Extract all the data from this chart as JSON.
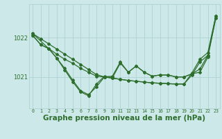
{
  "bg_color": "#cce8e8",
  "line_color": "#2d6e2d",
  "grid_color": "#aacece",
  "xlabel": "Graphe pression niveau de la mer (hPa)",
  "xlabel_fontsize": 7.5,
  "xticks": [
    0,
    1,
    2,
    3,
    4,
    5,
    6,
    7,
    8,
    9,
    10,
    11,
    12,
    13,
    14,
    15,
    16,
    17,
    18,
    19,
    20,
    21,
    22,
    23
  ],
  "ytick_labels": [
    "1021",
    "1022"
  ],
  "ytick_vals": [
    1021.0,
    1022.0
  ],
  "ylim": [
    1020.2,
    1022.85
  ],
  "xlim": [
    -0.5,
    23.5
  ],
  "series": [
    {
      "x": [
        0,
        1,
        2,
        3,
        4,
        5,
        6,
        7,
        8,
        9,
        10,
        11,
        12,
        13,
        14,
        15,
        16,
        17,
        18,
        19,
        20,
        21,
        22,
        23
      ],
      "y": [
        1022.1,
        1021.97,
        1021.84,
        1021.71,
        1021.58,
        1021.45,
        1021.32,
        1021.19,
        1021.06,
        1021.0,
        1020.97,
        1020.94,
        1020.91,
        1020.89,
        1020.87,
        1020.85,
        1020.84,
        1020.83,
        1020.82,
        1020.82,
        1021.1,
        1021.45,
        1021.62,
        1022.55
      ],
      "marker": "D",
      "markersize": 2.0,
      "linewidth": 0.9
    },
    {
      "x": [
        0,
        1,
        2,
        3,
        4,
        5,
        6,
        7,
        8,
        9,
        10,
        11,
        12,
        13,
        14,
        15,
        16,
        17,
        18,
        19,
        20,
        21,
        22,
        23
      ],
      "y": [
        1022.05,
        1021.82,
        1021.72,
        1021.58,
        1021.45,
        1021.35,
        1021.22,
        1021.12,
        1021.02,
        1021.0,
        1020.97,
        1020.94,
        1020.91,
        1020.89,
        1020.87,
        1020.85,
        1020.84,
        1020.83,
        1020.82,
        1020.82,
        1021.05,
        1021.38,
        1021.55,
        1022.5
      ],
      "marker": "D",
      "markersize": 2.0,
      "linewidth": 0.9
    },
    {
      "x": [
        0,
        1,
        2,
        3,
        4,
        5,
        6,
        7,
        8,
        9,
        10,
        11,
        12,
        13,
        14,
        15,
        16,
        17,
        18,
        19,
        20,
        21,
        22,
        23
      ],
      "y": [
        1022.05,
        1021.82,
        1021.72,
        1021.48,
        1021.22,
        1020.92,
        1020.65,
        1020.55,
        1020.75,
        1021.0,
        1021.02,
        1021.38,
        1021.12,
        1021.28,
        1021.12,
        1021.02,
        1021.05,
        1021.05,
        1021.0,
        1021.0,
        1021.08,
        1021.12,
        1021.5,
        1022.5
      ],
      "marker": "D",
      "markersize": 2.0,
      "linewidth": 0.9
    },
    {
      "x": [
        0,
        2,
        3,
        4,
        5,
        6,
        7,
        8,
        9,
        10,
        11,
        12,
        13,
        14,
        15,
        16,
        17,
        18,
        19,
        20,
        21,
        22,
        23
      ],
      "y": [
        1022.1,
        1021.72,
        1021.48,
        1021.18,
        1020.88,
        1020.62,
        1020.52,
        1020.82,
        1021.02,
        1020.98,
        1021.35,
        1021.12,
        1021.28,
        1021.12,
        1021.02,
        1021.05,
        1021.05,
        1021.0,
        1021.0,
        1021.08,
        1021.2,
        1021.55,
        1022.55
      ],
      "marker": "D",
      "markersize": 2.0,
      "linewidth": 0.9
    }
  ]
}
